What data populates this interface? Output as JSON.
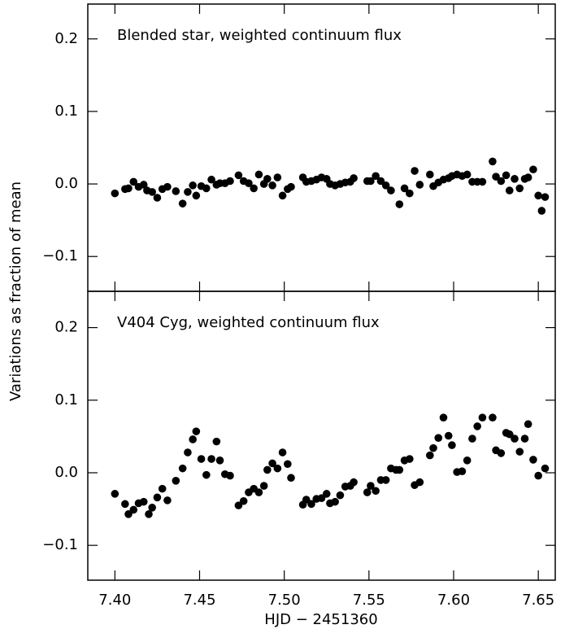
{
  "chart_data": [
    {
      "type": "scatter",
      "title": "Blended star, weighted continuum flux",
      "ylabel": "Variations as fraction of mean",
      "color": "#000000",
      "x": [
        7.4,
        7.406,
        7.408,
        7.411,
        7.414,
        7.417,
        7.419,
        7.422,
        7.425,
        7.428,
        7.431,
        7.436,
        7.44,
        7.443,
        7.446,
        7.448,
        7.451,
        7.454,
        7.457,
        7.46,
        7.462,
        7.465,
        7.468,
        7.473,
        7.476,
        7.479,
        7.482,
        7.485,
        7.488,
        7.49,
        7.493,
        7.496,
        7.499,
        7.502,
        7.504,
        7.511,
        7.513,
        7.516,
        7.519,
        7.522,
        7.525,
        7.527,
        7.53,
        7.533,
        7.536,
        7.539,
        7.541,
        7.549,
        7.551,
        7.554,
        7.557,
        7.56,
        7.563,
        7.568,
        7.571,
        7.574,
        7.577,
        7.58,
        7.586,
        7.588,
        7.591,
        7.594,
        7.597,
        7.599,
        7.602,
        7.605,
        7.608,
        7.611,
        7.614,
        7.617,
        7.623,
        7.625,
        7.628,
        7.631,
        7.633,
        7.636,
        7.639,
        7.642,
        7.644,
        7.647,
        7.65,
        7.652,
        7.654
      ],
      "values": [
        -0.013,
        -0.007,
        -0.006,
        0.003,
        -0.004,
        -0.001,
        -0.009,
        -0.011,
        -0.019,
        -0.007,
        -0.004,
        -0.01,
        -0.027,
        -0.011,
        -0.002,
        -0.016,
        -0.003,
        -0.006,
        0.006,
        -0.001,
        0.001,
        0.001,
        0.004,
        0.012,
        0.004,
        0.001,
        -0.006,
        0.013,
        0.0,
        0.007,
        -0.002,
        0.009,
        -0.016,
        -0.007,
        -0.004,
        0.009,
        0.003,
        0.004,
        0.006,
        0.009,
        0.007,
        0.0,
        -0.002,
        0.0,
        0.002,
        0.003,
        0.008,
        0.004,
        0.004,
        0.011,
        0.004,
        -0.002,
        -0.009,
        -0.028,
        -0.006,
        -0.013,
        0.018,
        -0.001,
        0.013,
        -0.003,
        0.002,
        0.006,
        0.008,
        0.011,
        0.013,
        0.011,
        0.013,
        0.003,
        0.003,
        0.003,
        0.031,
        0.01,
        0.004,
        0.012,
        -0.009,
        0.007,
        -0.006,
        0.007,
        0.009,
        0.02,
        -0.016,
        -0.037,
        -0.018
      ],
      "xlim": [
        7.384,
        7.66
      ],
      "ylim": [
        -0.148,
        0.248
      ],
      "yticks": [
        {
          "value": -0.1,
          "label": "−0.1"
        },
        {
          "value": 0,
          "label": "0.0"
        },
        0.1,
        0.2
      ]
    },
    {
      "type": "scatter",
      "title": "V404 Cyg, weighted continuum flux",
      "xlabel": "HJD − 2451360",
      "color": "#000000",
      "x": [
        7.4,
        7.406,
        7.408,
        7.411,
        7.414,
        7.417,
        7.42,
        7.422,
        7.425,
        7.428,
        7.431,
        7.436,
        7.44,
        7.443,
        7.446,
        7.448,
        7.451,
        7.454,
        7.457,
        7.46,
        7.462,
        7.465,
        7.468,
        7.473,
        7.476,
        7.479,
        7.482,
        7.485,
        7.488,
        7.49,
        7.493,
        7.496,
        7.499,
        7.502,
        7.504,
        7.511,
        7.513,
        7.516,
        7.519,
        7.522,
        7.525,
        7.527,
        7.53,
        7.533,
        7.536,
        7.539,
        7.541,
        7.549,
        7.551,
        7.554,
        7.557,
        7.56,
        7.563,
        7.566,
        7.568,
        7.571,
        7.574,
        7.577,
        7.58,
        7.586,
        7.588,
        7.591,
        7.594,
        7.597,
        7.599,
        7.602,
        7.605,
        7.608,
        7.611,
        7.614,
        7.617,
        7.623,
        7.625,
        7.628,
        7.631,
        7.633,
        7.636,
        7.639,
        7.642,
        7.644,
        7.647,
        7.65,
        7.654
      ],
      "values": [
        -0.029,
        -0.043,
        -0.057,
        -0.051,
        -0.042,
        -0.04,
        -0.057,
        -0.048,
        -0.034,
        -0.022,
        -0.038,
        -0.011,
        0.006,
        0.028,
        0.046,
        0.057,
        0.019,
        -0.003,
        0.019,
        0.043,
        0.017,
        -0.002,
        -0.004,
        -0.045,
        -0.039,
        -0.027,
        -0.022,
        -0.027,
        -0.018,
        0.004,
        0.013,
        0.006,
        0.028,
        0.012,
        -0.007,
        -0.044,
        -0.037,
        -0.043,
        -0.036,
        -0.035,
        -0.029,
        -0.042,
        -0.04,
        -0.031,
        -0.019,
        -0.018,
        -0.013,
        -0.027,
        -0.018,
        -0.025,
        -0.01,
        -0.01,
        0.006,
        0.004,
        0.004,
        0.017,
        0.019,
        -0.017,
        -0.013,
        0.024,
        0.034,
        0.048,
        0.076,
        0.051,
        0.038,
        0.001,
        0.002,
        0.017,
        0.047,
        0.064,
        0.076,
        0.076,
        0.031,
        0.027,
        0.055,
        0.053,
        0.047,
        0.029,
        0.047,
        0.067,
        0.018,
        -0.004,
        0.006
      ],
      "xlim": [
        7.384,
        7.66
      ],
      "ylim": [
        -0.148,
        0.25
      ],
      "yticks": [
        {
          "value": -0.1,
          "label": "−0.1"
        },
        {
          "value": 0,
          "label": "0.0"
        },
        0.1,
        0.2
      ],
      "xticks": [
        {
          "value": 7.4,
          "label": "7.40"
        },
        7.45,
        {
          "value": 7.5,
          "label": "7.50"
        },
        7.55,
        {
          "value": 7.6,
          "label": "7.60"
        },
        7.65
      ]
    }
  ]
}
